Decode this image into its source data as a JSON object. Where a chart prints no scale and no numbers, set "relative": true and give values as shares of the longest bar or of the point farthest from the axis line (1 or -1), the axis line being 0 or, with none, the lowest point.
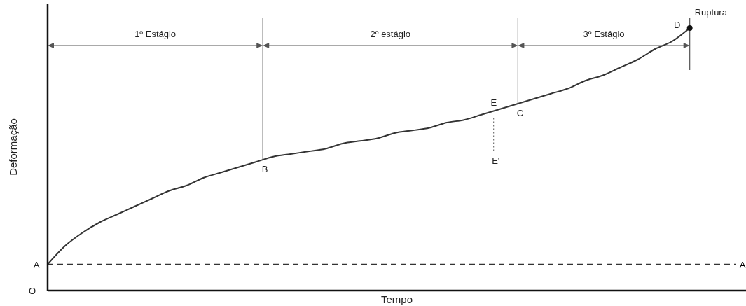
{
  "chart_data": {
    "type": "line",
    "relative": true,
    "xlabel": "Tempo",
    "ylabel": "Deformação",
    "categories": [
      null,
      null,
      null,
      null,
      null,
      null,
      null,
      null,
      null,
      null,
      null,
      null,
      null,
      null,
      null,
      null,
      null,
      null,
      null,
      null,
      null,
      null,
      null,
      null,
      null,
      null,
      null,
      null,
      null,
      null,
      null,
      null,
      null,
      null,
      null,
      null,
      null,
      null,
      null,
      null,
      null
    ],
    "series": [
      {
        "color": "#333333",
        "values": [
          0.1,
          0.17,
          0.22,
          0.26,
          0.29,
          0.32,
          0.35,
          0.38,
          0.4,
          0.43,
          0.45,
          0.47,
          0.49,
          0.51,
          0.52,
          0.53,
          0.54,
          0.56,
          0.57,
          0.58,
          0.6,
          0.61,
          0.62,
          0.64,
          0.65,
          0.67,
          0.69,
          0.71,
          0.73,
          0.75,
          0.77,
          0.8,
          0.82,
          0.85,
          0.88,
          0.92,
          0.95,
          1,
          null,
          null,
          null
        ]
      }
    ],
    "ref_lines": [
      {
        "axis": "y",
        "value": 0.1,
        "label": "A",
        "line_style": "dashed",
        "color": "#333333"
      }
    ],
    "annotations": [
      "1º Estágio",
      "2º estágio",
      "3º Estágio",
      "A",
      "B",
      "C",
      "D",
      "E",
      "E'",
      "Ruptura",
      "O"
    ],
    "line_style": "solid",
    "marker": "none"
  }
}
